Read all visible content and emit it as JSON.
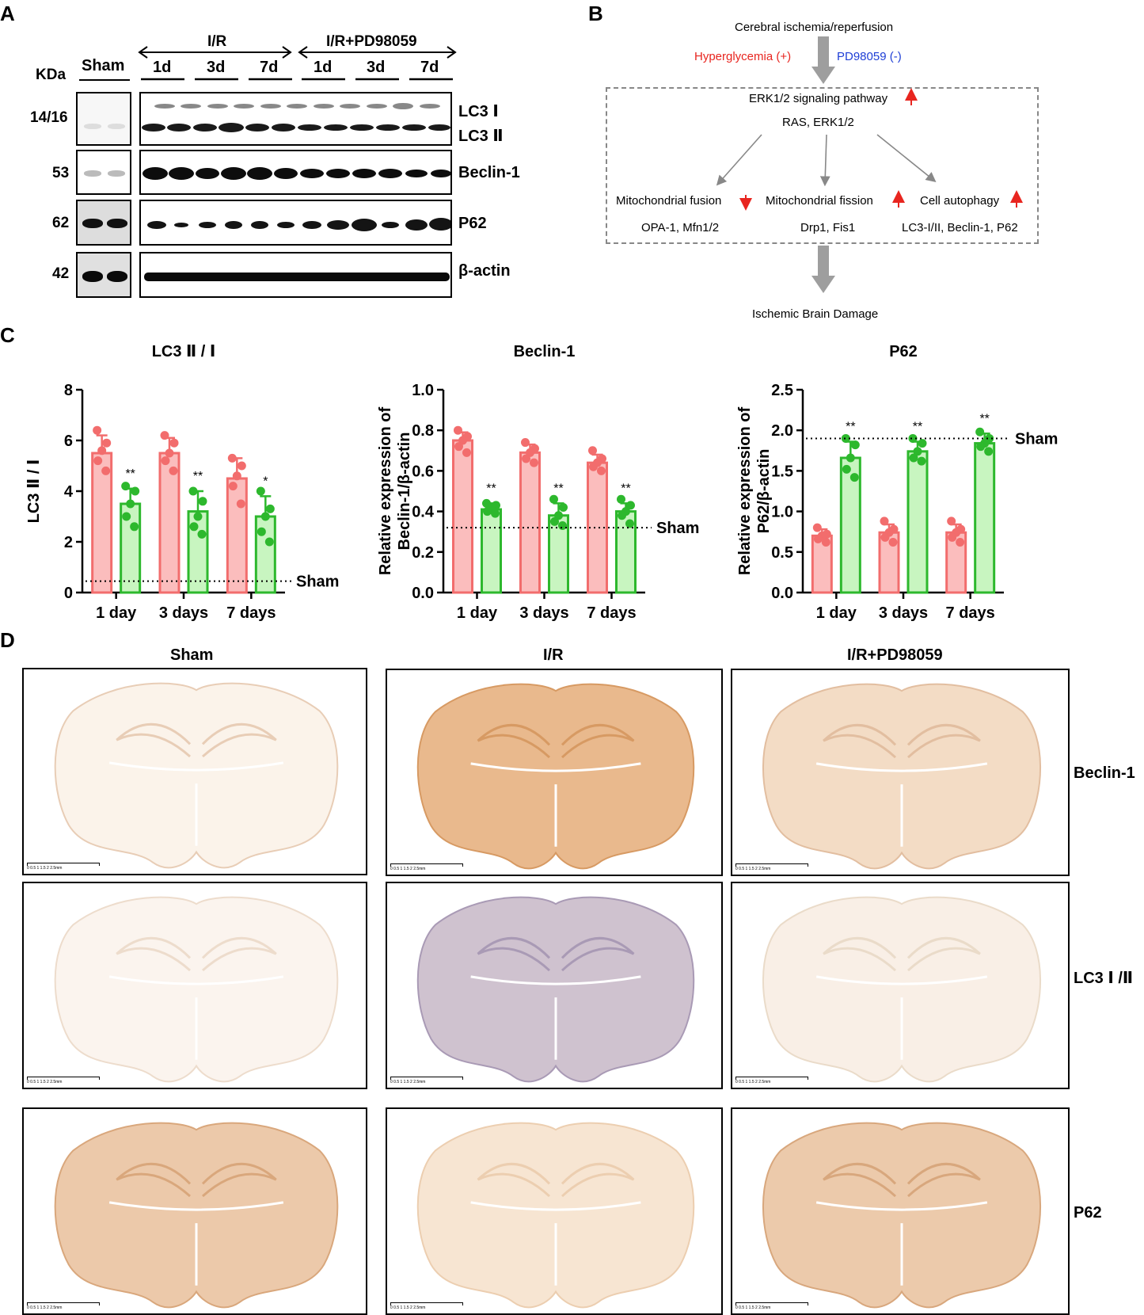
{
  "panels": {
    "a": "A",
    "b": "B",
    "c": "C",
    "d": "D"
  },
  "panel_a": {
    "kda_label": "KDa",
    "sham_label": "Sham",
    "group_ir": "I/R",
    "group_irpd": "I/R+PD98059",
    "timepoints": [
      "1d",
      "3d",
      "7d",
      "1d",
      "3d",
      "7d"
    ],
    "markers": [
      "14/16",
      "53",
      "62",
      "42"
    ],
    "proteins": {
      "lc3_1": "LC3 Ⅰ",
      "lc3_2": "LC3 Ⅱ",
      "beclin": "Beclin-1",
      "p62": "P62",
      "actin": "β-actin"
    }
  },
  "panel_b": {
    "top": "Cerebral ischemia/reperfusion",
    "hyperglycemia": "Hyperglycemia (+)",
    "pd98059": "PD98059 (-)",
    "erk": "ERK1/2 signaling pathway",
    "ras": "RAS, ERK1/2",
    "fusion": "Mitochondrial fusion",
    "fission": "Mitochondrial fission",
    "autophagy": "Cell autophagy",
    "fusion_genes": "OPA-1, Mfn1/2",
    "fission_genes": "Drp1, Fis1",
    "autophagy_genes": "LC3-I/II, Beclin-1, P62",
    "bottom": "Ischemic Brain Damage",
    "colors": {
      "red": "#e8251f",
      "blue": "#1f3fd6",
      "arrow": "#9e9e9e"
    }
  },
  "panel_d": {
    "col_headers": [
      "Sham",
      "I/R",
      "I/R+PD98059"
    ],
    "row_labels": [
      "Beclin-1",
      "LC3 Ⅰ /Ⅱ",
      "P62"
    ],
    "scalebar": "0  0.5  1  1.5  2  2.5mm"
  },
  "chart_data": [
    {
      "type": "bar",
      "title": "LC3 Ⅱ / Ⅰ",
      "ylabel": "LC3 Ⅱ / Ⅰ",
      "xlabel": "",
      "categories": [
        "1 day",
        "3 days",
        "7 days"
      ],
      "ylim": [
        0,
        8
      ],
      "yticks": [
        "0",
        "2",
        "4",
        "6",
        "8"
      ],
      "series": [
        {
          "values": [
            5.5,
            5.5,
            4.5
          ],
          "err": [
            0.7,
            0.6,
            0.8
          ],
          "color": "#f26d6d",
          "fill": "#fbbdbd",
          "points": [
            [
              6.4,
              5.9,
              5.6,
              5.2,
              4.8
            ],
            [
              6.2,
              5.9,
              5.5,
              5.2,
              4.8
            ],
            [
              5.3,
              5.0,
              4.6,
              4.2,
              3.5
            ]
          ]
        },
        {
          "values": [
            3.5,
            3.2,
            3.0
          ],
          "err": [
            0.6,
            0.8,
            0.8
          ],
          "color": "#2db82d",
          "fill": "#c8f5c0",
          "points": [
            [
              4.2,
              4.0,
              3.5,
              3.0,
              2.6
            ],
            [
              4.0,
              3.6,
              3.0,
              2.6,
              2.3
            ],
            [
              4.0,
              3.3,
              3.0,
              2.4,
              2.0
            ]
          ]
        }
      ],
      "sig": [
        "**",
        "**",
        "*"
      ],
      "sham_line": 0.45,
      "sham_label": "Sham"
    },
    {
      "type": "bar",
      "title": "Beclin-1",
      "ylabel": "Relative expression of\nBeclin-1/β-actin",
      "xlabel": "",
      "categories": [
        "1 day",
        "3 days",
        "7 days"
      ],
      "ylim": [
        0,
        1.0
      ],
      "yticks": [
        "0.0",
        "0.2",
        "0.4",
        "0.6",
        "0.8",
        "1.0"
      ],
      "series": [
        {
          "values": [
            0.75,
            0.69,
            0.64
          ],
          "err": [
            0.04,
            0.04,
            0.04
          ],
          "color": "#f26d6d",
          "fill": "#fbbdbd",
          "points": [
            [
              0.8,
              0.77,
              0.75,
              0.72,
              0.69
            ],
            [
              0.74,
              0.71,
              0.69,
              0.66,
              0.64
            ],
            [
              0.7,
              0.66,
              0.64,
              0.62,
              0.6
            ]
          ]
        },
        {
          "values": [
            0.41,
            0.38,
            0.4
          ],
          "err": [
            0.03,
            0.06,
            0.04
          ],
          "color": "#2db82d",
          "fill": "#c8f5c0",
          "points": [
            [
              0.44,
              0.43,
              0.41,
              0.4,
              0.39
            ],
            [
              0.46,
              0.42,
              0.38,
              0.35,
              0.33
            ],
            [
              0.46,
              0.43,
              0.4,
              0.38,
              0.34
            ]
          ]
        }
      ],
      "sig": [
        "**",
        "**",
        "**"
      ],
      "sham_line": 0.32,
      "sham_label": "Sham"
    },
    {
      "type": "bar",
      "title": "P62",
      "ylabel": "Relative expression of\nP62/β-actin",
      "xlabel": "",
      "categories": [
        "1 day",
        "3 days",
        "7 days"
      ],
      "ylim": [
        0,
        2.5
      ],
      "yticks": [
        "0.0",
        "0.5",
        "1.0",
        "1.5",
        "2.0",
        "2.5"
      ],
      "series": [
        {
          "values": [
            0.7,
            0.74,
            0.74
          ],
          "err": [
            0.08,
            0.1,
            0.1
          ],
          "color": "#f26d6d",
          "fill": "#fbbdbd",
          "points": [
            [
              0.8,
              0.72,
              0.7,
              0.66,
              0.62
            ],
            [
              0.88,
              0.78,
              0.74,
              0.68,
              0.62
            ],
            [
              0.88,
              0.78,
              0.74,
              0.68,
              0.62
            ]
          ]
        },
        {
          "values": [
            1.66,
            1.74,
            1.84
          ],
          "err": [
            0.2,
            0.12,
            0.12
          ],
          "color": "#2db82d",
          "fill": "#c8f5c0",
          "points": [
            [
              1.9,
              1.82,
              1.66,
              1.52,
              1.42
            ],
            [
              1.9,
              1.84,
              1.74,
              1.66,
              1.62
            ],
            [
              1.98,
              1.9,
              1.84,
              1.8,
              1.74
            ]
          ]
        }
      ],
      "sig": [
        "**",
        "**",
        "**"
      ],
      "sham_line": 1.9,
      "sham_label": "Sham"
    }
  ]
}
